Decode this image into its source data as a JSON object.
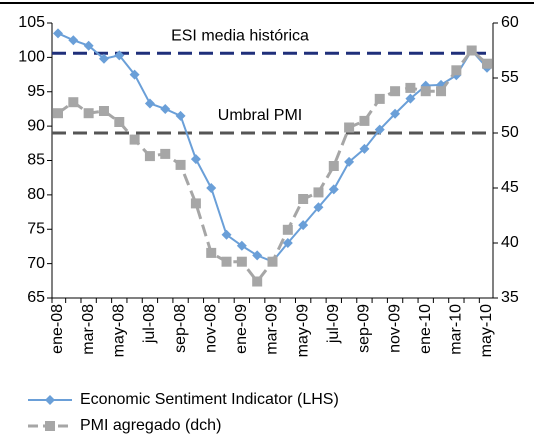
{
  "chart_data": {
    "type": "line",
    "categories": [
      "ene-08",
      null,
      "mar-08",
      null,
      "may-08",
      null,
      "jul-08",
      null,
      "sep-08",
      null,
      "nov-08",
      null,
      "ene-09",
      null,
      "mar-09",
      null,
      "may-09",
      null,
      "jul-09",
      null,
      "sep-09",
      null,
      "nov-09",
      null,
      "ene-10",
      null,
      "mar-10",
      null,
      "may-10"
    ],
    "series": [
      {
        "name": "Economic Sentiment Indicator (LHS)",
        "color": "#6a9fd8",
        "marker": "diamond",
        "dashed": false,
        "axis": "y",
        "values": [
          103.5,
          102.5,
          101.7,
          99.8,
          100.3,
          97.5,
          93.3,
          92.5,
          91.5,
          85.2,
          81,
          74.2,
          72.6,
          71.2,
          70.3,
          73,
          75.6,
          78.2,
          80.8,
          84.8,
          86.7,
          89.5,
          91.8,
          94,
          95.9,
          96,
          97.4,
          101,
          98.5
        ]
      },
      {
        "name": "PMI agregado (dch)",
        "color": "#a6a6a6",
        "marker": "square",
        "dashed": true,
        "axis": "y2",
        "values": [
          51.8,
          52.8,
          51.8,
          52,
          51,
          49.4,
          47.9,
          48.1,
          47.1,
          43.6,
          39.1,
          38.3,
          38.3,
          36.5,
          38.3,
          41.2,
          44,
          44.6,
          47,
          50.5,
          51.1,
          53.1,
          53.8,
          54.1,
          53.8,
          53.8,
          55.7,
          57.5,
          56.3
        ]
      }
    ],
    "ylim": [
      65,
      105
    ],
    "yticks": [
      65,
      70,
      75,
      80,
      85,
      90,
      95,
      100,
      105
    ],
    "y2lim": [
      35,
      60
    ],
    "y2ticks": [
      35,
      40,
      45,
      50,
      55,
      60
    ],
    "reference_lines": [
      {
        "label": "ESI media histórica",
        "value": 100.6,
        "axis": "y",
        "color": "#1f2f7a"
      },
      {
        "label": "Umbral PMI",
        "value": 50,
        "axis": "y2",
        "color": "#555555"
      }
    ],
    "legend": "bottom"
  }
}
